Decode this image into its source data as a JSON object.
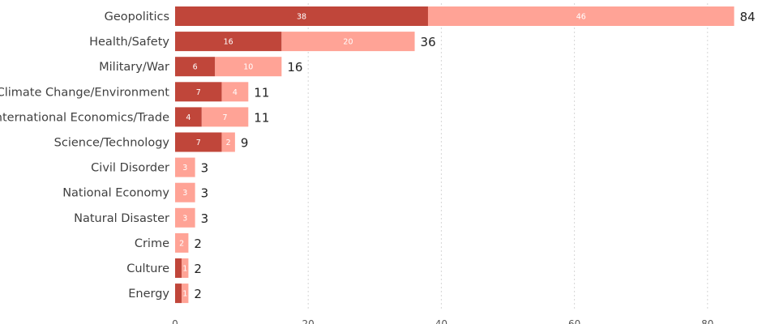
{
  "chart_data": {
    "type": "bar",
    "orientation": "horizontal",
    "stacked": true,
    "categories": [
      "Geopolitics",
      "Health/Safety",
      "Military/War",
      "Climate Change/Environment",
      "International Economics/Trade",
      "Science/Technology",
      "Civil Disorder",
      "National Economy",
      "Natural Disaster",
      "Crime",
      "Culture",
      "Energy"
    ],
    "series": [
      {
        "values": [
          38,
          16,
          6,
          7,
          4,
          7,
          0,
          0,
          0,
          0,
          1,
          1
        ],
        "color": "#c0463a"
      },
      {
        "values": [
          46,
          20,
          10,
          4,
          7,
          2,
          3,
          3,
          3,
          2,
          1,
          1
        ],
        "color": "#ffa396"
      }
    ],
    "totals": [
      84,
      36,
      16,
      11,
      11,
      9,
      3,
      3,
      3,
      2,
      2,
      2
    ],
    "xlim": [
      0,
      88
    ],
    "xticks": [
      0,
      20,
      40,
      60,
      80
    ],
    "grid": "vertical-dotted",
    "legend": "none"
  }
}
